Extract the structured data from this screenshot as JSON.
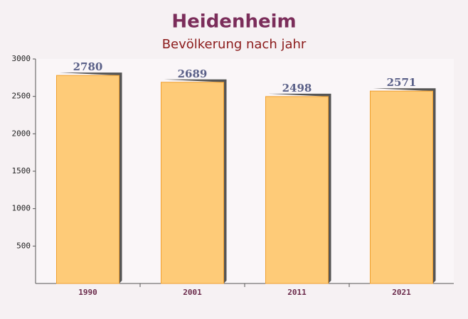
{
  "chart_data": {
    "type": "bar",
    "title": "Heidenheim",
    "subtitle": "Bevölkerung nach jahr",
    "categories": [
      "1990",
      "2001",
      "2011",
      "2021"
    ],
    "values": [
      2780,
      2689,
      2498,
      2571
    ],
    "color": "#fec76d",
    "ylim": [
      0,
      3000
    ],
    "yticks": [
      500,
      1000,
      1500,
      2000,
      2500,
      3000
    ]
  }
}
